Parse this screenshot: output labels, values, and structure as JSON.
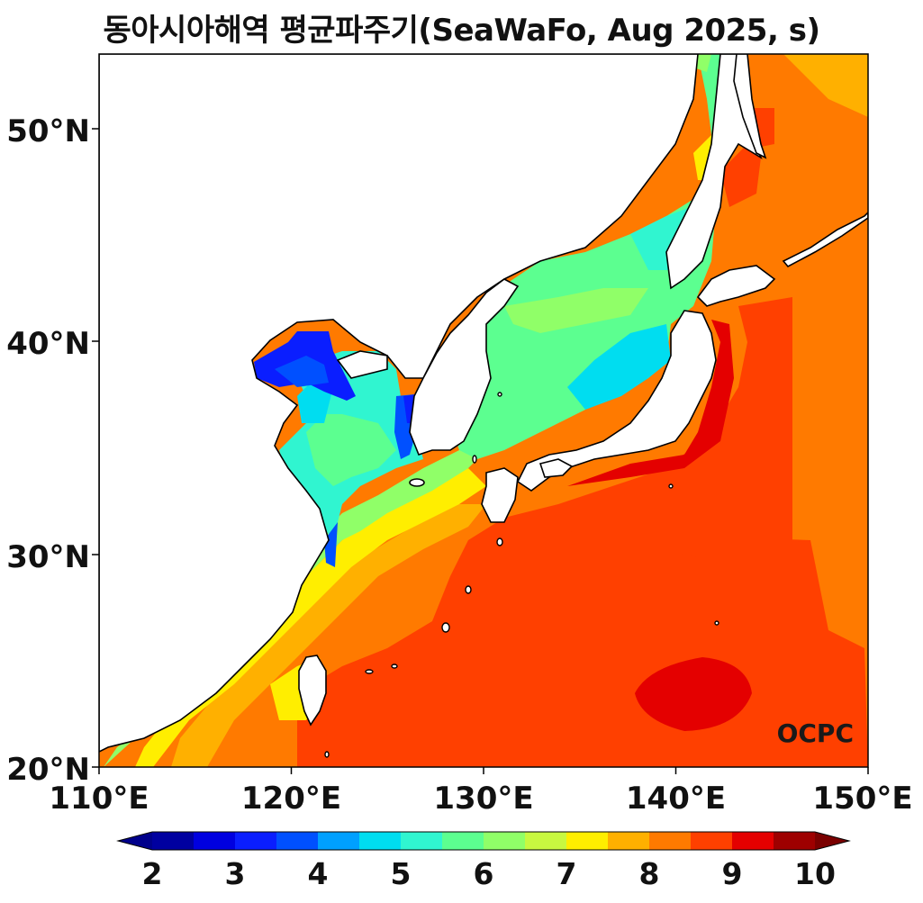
{
  "title": "동아시아해역 평균파주기(SeaWaFo, Aug 2025, s)",
  "logo": "OCPC",
  "map": {
    "lon_range": [
      110,
      150
    ],
    "lat_range": [
      20,
      53.5
    ],
    "x_ticks": [
      "110°E",
      "120°E",
      "130°E",
      "140°E",
      "150°E"
    ],
    "y_ticks": [
      "20°N",
      "30°N",
      "40°N",
      "50°N"
    ]
  },
  "colorbar": {
    "ticks": [
      "2",
      "3",
      "4",
      "5",
      "6",
      "7",
      "8",
      "9",
      "10"
    ],
    "extend": "both",
    "under_color": "#00008b",
    "over_color": "#7a0000",
    "levels": [
      {
        "value": 2.0,
        "color": "#0000a0"
      },
      {
        "value": 2.5,
        "color": "#0000e0"
      },
      {
        "value": 3.0,
        "color": "#0a1eff"
      },
      {
        "value": 3.5,
        "color": "#0050ff"
      },
      {
        "value": 4.0,
        "color": "#00a0ff"
      },
      {
        "value": 4.5,
        "color": "#00ddf0"
      },
      {
        "value": 5.0,
        "color": "#30f5d0"
      },
      {
        "value": 5.5,
        "color": "#5cff90"
      },
      {
        "value": 6.0,
        "color": "#90ff68"
      },
      {
        "value": 6.5,
        "color": "#c8f840"
      },
      {
        "value": 7.0,
        "color": "#ffee00"
      },
      {
        "value": 7.5,
        "color": "#ffb000"
      },
      {
        "value": 8.0,
        "color": "#ff7a00"
      },
      {
        "value": 8.5,
        "color": "#ff4000"
      },
      {
        "value": 9.0,
        "color": "#e40000"
      },
      {
        "value": 9.5,
        "color": "#9e0000"
      }
    ]
  }
}
